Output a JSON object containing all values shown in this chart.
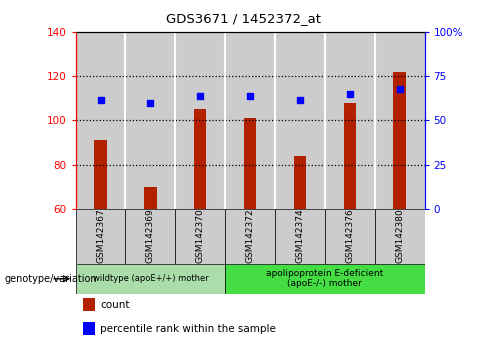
{
  "title": "GDS3671 / 1452372_at",
  "categories": [
    "GSM142367",
    "GSM142369",
    "GSM142370",
    "GSM142372",
    "GSM142374",
    "GSM142376",
    "GSM142380"
  ],
  "bar_values": [
    91,
    70,
    105,
    101,
    84,
    108,
    122
  ],
  "dot_values": [
    109,
    108,
    111,
    111,
    109,
    112,
    114
  ],
  "ylim_left": [
    60,
    140
  ],
  "ylim_right": [
    0,
    100
  ],
  "left_ticks": [
    60,
    80,
    100,
    120,
    140
  ],
  "right_ticks": [
    0,
    25,
    50,
    75,
    100
  ],
  "bar_color": "#B22000",
  "dot_color": "#0000ff",
  "grid_color": "black",
  "bg_color": "#ffffff",
  "bar_bg_color": "#cccccc",
  "group1_label": "wildtype (apoE+/+) mother",
  "group2_label": "apolipoprotein E-deficient\n(apoE-/-) mother",
  "group1_indices": [
    0,
    1,
    2
  ],
  "group2_indices": [
    3,
    4,
    5,
    6
  ],
  "group1_color": "#aaddaa",
  "group2_color": "#44dd44",
  "legend_bar_label": "count",
  "legend_dot_label": "percentile rank within the sample",
  "genotype_label": "genotype/variation"
}
